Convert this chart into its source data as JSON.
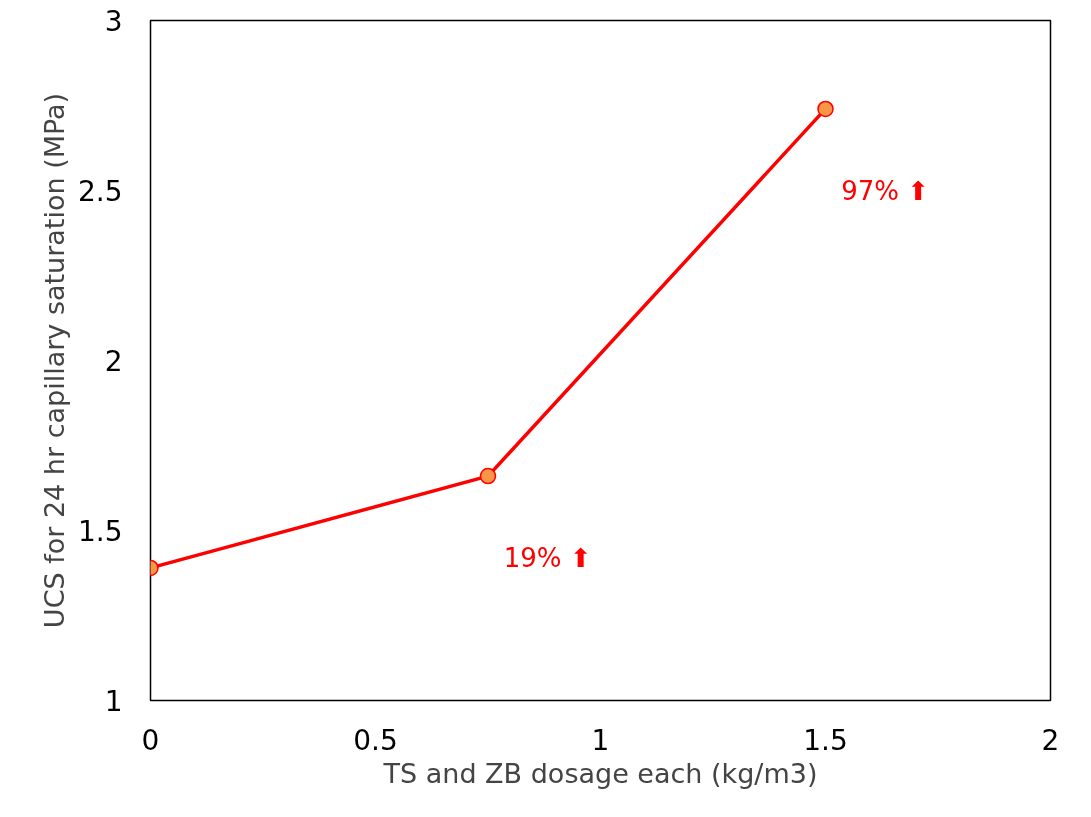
{
  "chart_data": {
    "type": "line",
    "xlabel": "TS and ZB dosage each (kg/m3)",
    "ylabel": "UCS for 24 hr capillary saturation (MPa)",
    "x": [
      0,
      0.75,
      1.5
    ],
    "series": [
      {
        "color": "#ff0000",
        "colors": [
          "#f79646",
          "#f79646",
          "#f79646"
        ],
        "values": [
          1.39,
          1.66,
          2.74
        ]
      }
    ],
    "xlim": [
      0,
      2
    ],
    "ylim": [
      1,
      3
    ],
    "xticks": [
      0,
      0.5,
      1,
      1.5,
      2
    ],
    "yticks": [
      1,
      1.5,
      2,
      2.5,
      3
    ],
    "marker": "circle",
    "line_style": "solid",
    "grid": false,
    "annotations": [
      {
        "text": "19% ⬆",
        "x": 0.75,
        "y": 1.66
      },
      {
        "text": "97% ⬆",
        "x": 1.5,
        "y": 2.74
      }
    ]
  }
}
